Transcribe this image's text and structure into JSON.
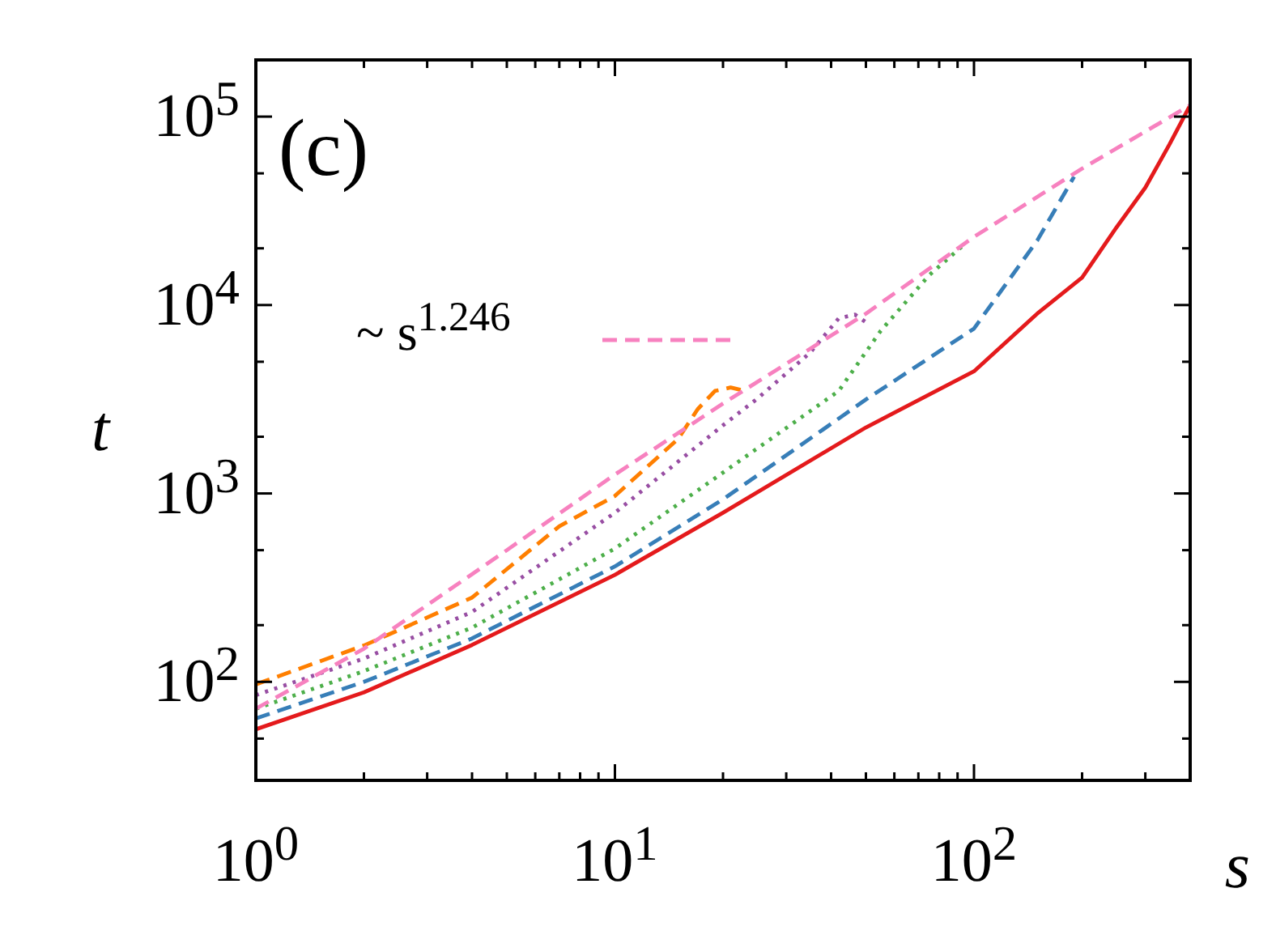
{
  "chart_data": {
    "type": "line",
    "xlabel": "s",
    "ylabel": "t",
    "log": "xy",
    "grid": false,
    "legend": "top left",
    "marker": "none",
    "annotations": [
      "(c)"
    ],
    "xlim": [
      1,
      400
    ],
    "ylim": [
      30,
      200000
    ],
    "xticks": [
      {
        "value": 1,
        "label": "10$^{0}$"
      },
      {
        "value": 2,
        "label": null
      },
      {
        "value": 3,
        "label": null
      },
      {
        "value": 4,
        "label": null
      },
      {
        "value": 5,
        "label": null
      },
      {
        "value": 6,
        "label": null
      },
      {
        "value": 7,
        "label": null
      },
      {
        "value": 8,
        "label": null
      },
      {
        "value": 9,
        "label": null
      },
      {
        "value": 10,
        "label": "10$^{1}$"
      },
      {
        "value": 20,
        "label": null
      },
      {
        "value": 30,
        "label": null
      },
      {
        "value": 40,
        "label": null
      },
      {
        "value": 50,
        "label": null
      },
      {
        "value": 60,
        "label": null
      },
      {
        "value": 70,
        "label": null
      },
      {
        "value": 80,
        "label": null
      },
      {
        "value": 90,
        "label": null
      },
      {
        "value": 100,
        "label": "10$^{2}$"
      },
      {
        "value": 200,
        "label": null
      },
      {
        "value": 300,
        "label": null
      }
    ],
    "yticks": [
      {
        "value": 50,
        "label": null
      },
      {
        "value": 100,
        "label": "10$^{2}$"
      },
      {
        "value": 200,
        "label": null
      },
      {
        "value": 500,
        "label": null
      },
      {
        "value": 1000,
        "label": "10$^{3}$"
      },
      {
        "value": 2000,
        "label": null
      },
      {
        "value": 5000,
        "label": null
      },
      {
        "value": 10000,
        "label": "10$^{4}$"
      },
      {
        "value": 20000,
        "label": null
      },
      {
        "value": 50000,
        "label": null
      },
      {
        "value": 100000,
        "label": "10$^{5}$"
      }
    ],
    "series": [
      {
        "color": "#e41a1c",
        "line_style": "solid",
        "x": [
          1,
          2,
          4,
          10,
          20,
          50,
          100,
          150,
          200,
          250,
          300,
          350,
          400
        ],
        "values": [
          56,
          88,
          157,
          370,
          790,
          2240,
          4450,
          9000,
          14000,
          26000,
          42000,
          71000,
          115000
        ]
      },
      {
        "color": "#377eb8",
        "line_style": "dashed",
        "x": [
          1,
          2,
          4,
          10,
          20,
          50,
          100,
          150,
          190
        ],
        "values": [
          64,
          100,
          170,
          410,
          930,
          3150,
          7500,
          22000,
          48000
        ]
      },
      {
        "color": "#4daf4a",
        "line_style": "dotted",
        "x": [
          1,
          2,
          4,
          10,
          20,
          42,
          55,
          75,
          94
        ],
        "values": [
          72,
          114,
          194,
          510,
          1290,
          3500,
          7300,
          14400,
          21000
        ]
      },
      {
        "color": "#984ea3",
        "line_style": "dotted",
        "x": [
          1,
          2,
          4,
          10,
          20,
          25,
          35,
          42,
          46.6,
          50
        ],
        "values": [
          85,
          133,
          235,
          790,
          2300,
          3200,
          5600,
          8500,
          8900,
          8100
        ]
      },
      {
        "color": "#ff7f00",
        "line_style": "dashed",
        "x": [
          1,
          2,
          4,
          7,
          10,
          15,
          17,
          19,
          21,
          23
        ],
        "values": [
          97,
          156,
          280,
          670,
          970,
          1950,
          2800,
          3500,
          3650,
          3500
        ]
      },
      {
        "name": "~ s$^{1.246}$",
        "color": "#f781bf",
        "line_style": "dashed",
        "x": [
          1,
          2,
          5,
          10,
          20,
          50,
          100,
          200,
          400
        ],
        "values": [
          72,
          150,
          500,
          1260,
          3000,
          9000,
          23000,
          53000,
          115000
        ]
      }
    ]
  }
}
